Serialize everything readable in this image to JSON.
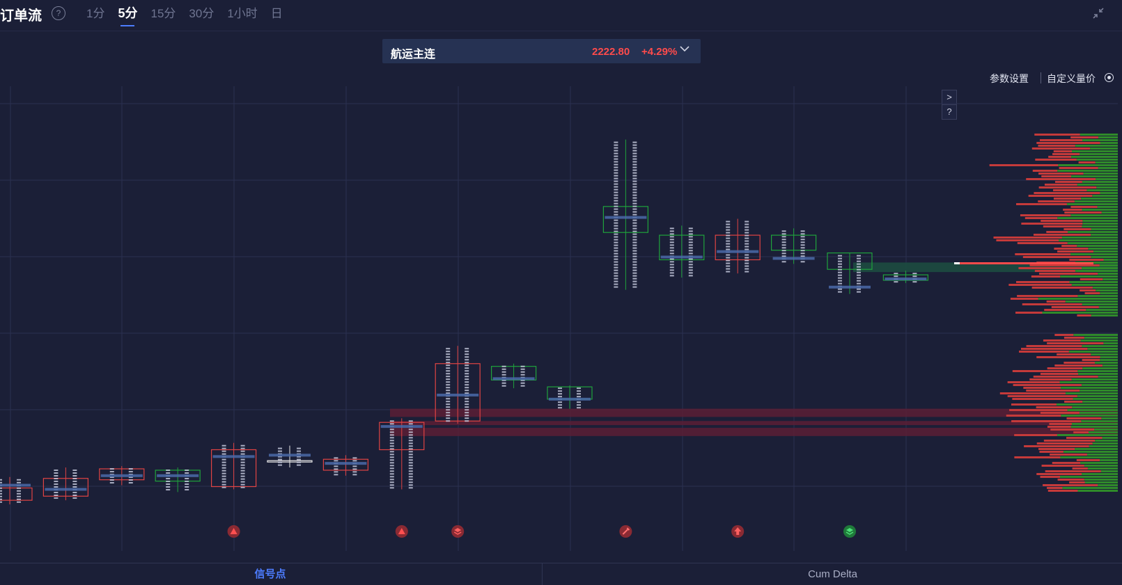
{
  "header": {
    "title": "订单流",
    "tabs": [
      {
        "label": "1分",
        "active": false
      },
      {
        "label": "5分",
        "active": true
      },
      {
        "label": "15分",
        "active": false
      },
      {
        "label": "30分",
        "active": false
      },
      {
        "label": "1小时",
        "active": false
      },
      {
        "label": "日",
        "active": false
      }
    ]
  },
  "instrument": {
    "name": "航运主连",
    "price": "2222.80",
    "change": "+4.29%"
  },
  "toolbar": {
    "settings_label": "参数设置",
    "custom_label": "自定义量价"
  },
  "footer": {
    "signal_label": "信号点",
    "cum_delta_label": "Cum Delta"
  },
  "colors": {
    "background": "#1b1f37",
    "up": "#ff4b4b",
    "down": "#22b24c",
    "accent": "#4d7dff",
    "poc": "#4a6aa8"
  },
  "chart_data": {
    "type": "candlestick-footprint",
    "grid": true,
    "ylim": [
      1936,
      2272
    ],
    "candles": [
      {
        "open": 1978,
        "close": 1969,
        "high": 1986,
        "low": 1966,
        "color": "red",
        "poc": 1980,
        "signal": null
      },
      {
        "open": 1972,
        "close": 1985,
        "high": 1993,
        "low": 1969,
        "color": "red",
        "poc": 1977,
        "signal": null
      },
      {
        "open": 1992,
        "close": 1984,
        "high": 1994,
        "low": 1980,
        "color": "red",
        "poc": 1987,
        "signal": null
      },
      {
        "open": 1991,
        "close": 1983,
        "high": 1993,
        "low": 1975,
        "color": "green",
        "poc": 1987,
        "signal": null
      },
      {
        "open": 2006,
        "close": 1979,
        "high": 2011,
        "low": 1977,
        "color": "red",
        "poc": 2001,
        "signal": "triangle-up"
      },
      {
        "open": 1998,
        "close": 1997,
        "high": 2009,
        "low": 1993,
        "color": "white",
        "poc": 2002,
        "signal": null
      },
      {
        "open": 1999,
        "close": 1991,
        "high": 2002,
        "low": 1987,
        "color": "red",
        "poc": 1996,
        "signal": null
      },
      {
        "open": 2026,
        "close": 2006,
        "high": 2029,
        "low": 1977,
        "color": "red",
        "poc": 2023,
        "signal": "triangle-up"
      },
      {
        "open": 2069,
        "close": 2027,
        "high": 2082,
        "low": 2025,
        "color": "red",
        "poc": 2046,
        "signal": "layers"
      },
      {
        "open": 2067,
        "close": 2057,
        "high": 2069,
        "low": 2051,
        "color": "green",
        "poc": 2058,
        "signal": null
      },
      {
        "open": 2052,
        "close": 2043,
        "high": 2053,
        "low": 2036,
        "color": "green",
        "poc": 2043,
        "signal": null
      },
      {
        "open": 2184,
        "close": 2165,
        "high": 2233,
        "low": 2123,
        "color": "green",
        "poc": 2176,
        "signal": "flask"
      },
      {
        "open": 2163,
        "close": 2145,
        "high": 2170,
        "low": 2132,
        "color": "green",
        "poc": 2147,
        "signal": null
      },
      {
        "open": 2163,
        "close": 2145,
        "high": 2175,
        "low": 2135,
        "color": "red",
        "poc": 2151,
        "signal": "arrow-up"
      },
      {
        "open": 2163,
        "close": 2152,
        "high": 2168,
        "low": 2142,
        "color": "green",
        "poc": 2146,
        "signal": null
      },
      {
        "open": 2150,
        "close": 2138,
        "high": 2150,
        "low": 2120,
        "color": "green",
        "poc": 2125,
        "signal": "layers"
      },
      {
        "open": 2134,
        "close": 2130,
        "high": 2137,
        "low": 2128,
        "color": "green",
        "poc": 2131,
        "signal": null
      }
    ],
    "zones": [
      {
        "from": 2030,
        "to": 2036,
        "color": "red"
      },
      {
        "from": 2024,
        "to": 2027,
        "color": "red"
      },
      {
        "from": 2016,
        "to": 2022,
        "color": "red"
      },
      {
        "from": 2136,
        "to": 2143,
        "color": "green"
      }
    ]
  }
}
